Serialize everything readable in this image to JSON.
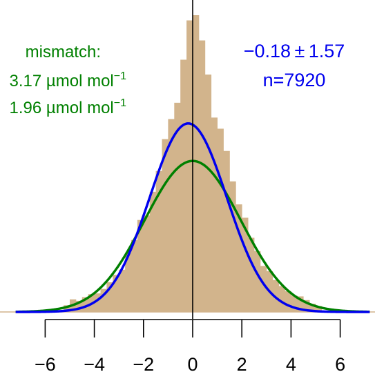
{
  "chart_data": {
    "type": "bar",
    "xlim": [
      -7.2,
      7.2
    ],
    "x_ticks": [
      -6,
      -4,
      -2,
      0,
      2,
      4,
      6
    ],
    "x_tick_labels": [
      "−6",
      "−4",
      "−2",
      "0",
      "2",
      "4",
      "6"
    ],
    "colors": {
      "histogram": "#d2b48c",
      "fit_curve": "#0000ee",
      "mismatch_curve": "#008000",
      "axis": "#000000"
    },
    "histogram": {
      "bin_width": 0.25,
      "bin_left_edges": [
        -5.25,
        -5.0,
        -4.75,
        -4.5,
        -4.25,
        -4.0,
        -3.75,
        -3.5,
        -3.25,
        -3.0,
        -2.75,
        -2.5,
        -2.25,
        -2.0,
        -1.75,
        -1.5,
        -1.25,
        -1.0,
        -0.75,
        -0.5,
        -0.25,
        0.0,
        0.25,
        0.5,
        0.75,
        1.0,
        1.25,
        1.5,
        1.75,
        2.0,
        2.25,
        2.5,
        2.75,
        3.0,
        3.25,
        3.5,
        3.75,
        4.0,
        4.25,
        4.5,
        4.75,
        5.0
      ],
      "heights": [
        0.009,
        0.017,
        0.015,
        0.02,
        0.024,
        0.025,
        0.031,
        0.04,
        0.05,
        0.057,
        0.08,
        0.097,
        0.124,
        0.13,
        0.162,
        0.19,
        0.233,
        0.26,
        0.282,
        0.34,
        0.393,
        0.4,
        0.366,
        0.32,
        0.262,
        0.247,
        0.217,
        0.176,
        0.145,
        0.127,
        0.1,
        0.082,
        0.062,
        0.055,
        0.043,
        0.035,
        0.028,
        0.022,
        0.021,
        0.016,
        0.011,
        0.008
      ]
    },
    "curves": [
      {
        "name": "fit",
        "mean": -0.18,
        "sd": 1.57
      },
      {
        "name": "mismatch",
        "mean": 0.0,
        "sd": 1.96
      }
    ],
    "vertical_line_x": 0
  },
  "annotations": {
    "mismatch_lines": [
      "mismatch:",
      "3.17 µmol mol",
      "1.96 µmol mol"
    ],
    "mismatch_superscript": "−1",
    "stats_line1": "−0.18 ± 1.57",
    "stats_line2": "n=7920"
  }
}
